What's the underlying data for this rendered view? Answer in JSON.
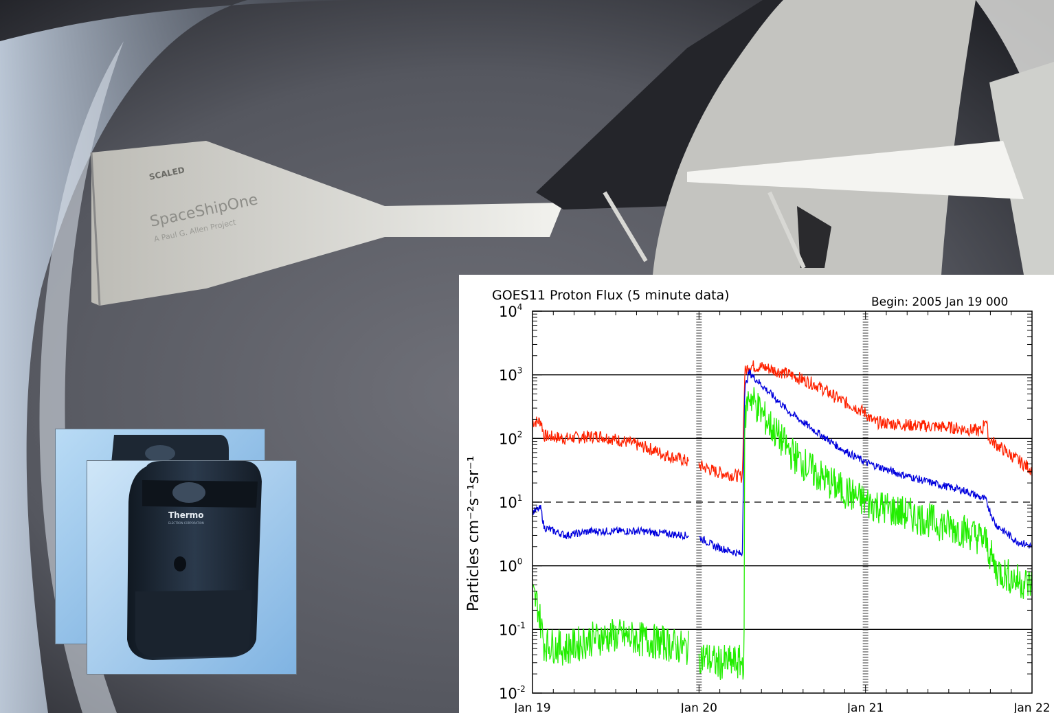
{
  "photo": {
    "ship_label": "SpaceShipOne",
    "ship_sublabel": "A Paul G. Allen Project",
    "ship_logo": "SCALED",
    "device_brand": "Thermo",
    "device_subtitle": "ELECTRON CORPORATION"
  },
  "chart_data": {
    "type": "line",
    "title": "GOES11 Proton Flux (5 minute data)",
    "begin_label": "Begin: 2005 Jan 19 000",
    "ylabel": "Particles cm⁻²s⁻¹sr⁻¹",
    "yscale": "log",
    "ylim": [
      0.01,
      10000
    ],
    "y_ticks": [
      {
        "base": "10",
        "exp": "4",
        "value": 10000
      },
      {
        "base": "10",
        "exp": "3",
        "value": 1000
      },
      {
        "base": "10",
        "exp": "2",
        "value": 100
      },
      {
        "base": "10",
        "exp": "1",
        "value": 10
      },
      {
        "base": "10",
        "exp": "0",
        "value": 1
      },
      {
        "base": "10",
        "exp": "-1",
        "value": 0.1
      },
      {
        "base": "10",
        "exp": "-2",
        "value": 0.01
      }
    ],
    "x_ticks": [
      "Jan 19",
      "Jan 20",
      "Jan 21",
      "Jan 22"
    ],
    "xlim_days": [
      0,
      3
    ],
    "solid_gridlines": [
      1000,
      100,
      1,
      0.1
    ],
    "dashed_gridlines": [
      10
    ],
    "series": [
      {
        "color": "#ff2200",
        "noise": 0.1,
        "gaps": [
          [
            0.94,
            1.0
          ]
        ],
        "points": [
          [
            0,
            180
          ],
          [
            0.05,
            190
          ],
          [
            0.07,
            110
          ],
          [
            0.2,
            100
          ],
          [
            0.4,
            110
          ],
          [
            0.55,
            90
          ],
          [
            0.7,
            70
          ],
          [
            0.8,
            55
          ],
          [
            0.92,
            45
          ],
          [
            0.94,
            40
          ],
          [
            1.0,
            38
          ],
          [
            1.1,
            30
          ],
          [
            1.26,
            25
          ],
          [
            1.275,
            1100
          ],
          [
            1.3,
            1400
          ],
          [
            1.4,
            1300
          ],
          [
            1.55,
            1000
          ],
          [
            1.7,
            700
          ],
          [
            1.85,
            400
          ],
          [
            1.95,
            300
          ],
          [
            2.0,
            250
          ],
          [
            2.05,
            180
          ],
          [
            2.3,
            160
          ],
          [
            2.5,
            150
          ],
          [
            2.7,
            130
          ],
          [
            2.72,
            220
          ],
          [
            2.74,
            100
          ],
          [
            2.85,
            60
          ],
          [
            3.0,
            32
          ]
        ]
      },
      {
        "color": "#0000dd",
        "noise": 0.06,
        "gaps": [
          [
            0.94,
            1.0
          ]
        ],
        "points": [
          [
            0,
            7
          ],
          [
            0.05,
            8
          ],
          [
            0.07,
            4
          ],
          [
            0.2,
            3
          ],
          [
            0.35,
            3.5
          ],
          [
            0.5,
            3.5
          ],
          [
            0.65,
            3.5
          ],
          [
            0.8,
            3.2
          ],
          [
            0.92,
            3
          ],
          [
            0.94,
            3
          ],
          [
            1.0,
            2.8
          ],
          [
            1.1,
            2
          ],
          [
            1.26,
            1.5
          ],
          [
            1.275,
            600
          ],
          [
            1.3,
            1100
          ],
          [
            1.4,
            600
          ],
          [
            1.55,
            250
          ],
          [
            1.7,
            130
          ],
          [
            1.85,
            70
          ],
          [
            2.0,
            42
          ],
          [
            2.2,
            28
          ],
          [
            2.4,
            20
          ],
          [
            2.6,
            15
          ],
          [
            2.72,
            11
          ],
          [
            2.78,
            4.5
          ],
          [
            2.9,
            2.5
          ],
          [
            3.0,
            2
          ]
        ]
      },
      {
        "color": "#22ee00",
        "noise": 0.28,
        "gaps": [
          [
            0.94,
            1.0
          ]
        ],
        "points": [
          [
            0,
            0.35
          ],
          [
            0.03,
            0.25
          ],
          [
            0.07,
            0.06
          ],
          [
            0.2,
            0.05
          ],
          [
            0.35,
            0.07
          ],
          [
            0.5,
            0.08
          ],
          [
            0.65,
            0.07
          ],
          [
            0.8,
            0.06
          ],
          [
            0.92,
            0.05
          ],
          [
            0.94,
            0.05
          ],
          [
            1.0,
            0.04
          ],
          [
            1.1,
            0.03
          ],
          [
            1.26,
            0.03
          ],
          [
            1.27,
            0.03
          ],
          [
            1.275,
            200
          ],
          [
            1.3,
            500
          ],
          [
            1.4,
            200
          ],
          [
            1.55,
            60
          ],
          [
            1.7,
            28
          ],
          [
            1.85,
            16
          ],
          [
            2.0,
            10
          ],
          [
            2.2,
            7
          ],
          [
            2.4,
            5
          ],
          [
            2.6,
            3.5
          ],
          [
            2.72,
            2.5
          ],
          [
            2.78,
            0.9
          ],
          [
            2.9,
            0.6
          ],
          [
            3.0,
            0.5
          ]
        ]
      }
    ]
  }
}
